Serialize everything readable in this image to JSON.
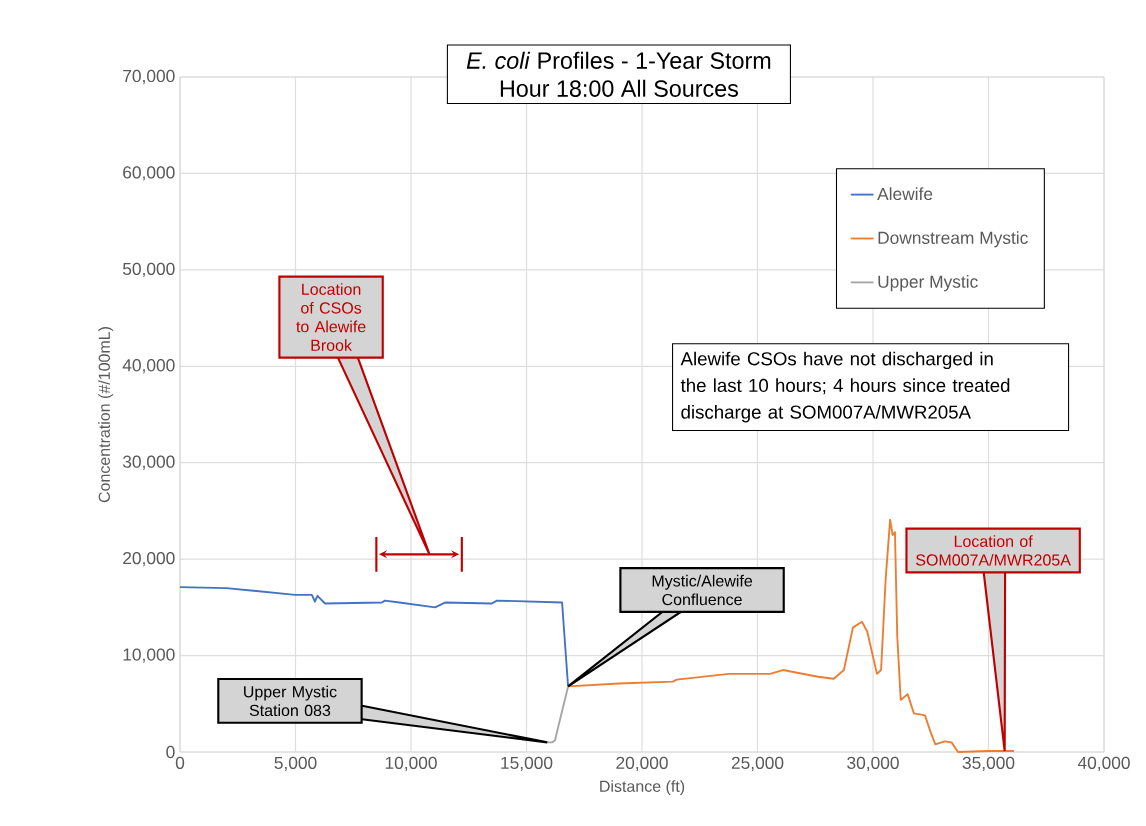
{
  "chart_data": {
    "type": "line",
    "title": "*E. coli* Profiles - 1-Year Storm",
    "subtitle": "Hour 18:00 All Sources",
    "xlabel": "Distance (ft)",
    "ylabel": "Concentration (#/100mL)",
    "xlim": [
      0,
      40000
    ],
    "ylim": [
      0,
      70000
    ],
    "xticks": [
      {
        "value": 0,
        "label": "0"
      },
      {
        "value": 5000,
        "label": "5,000"
      },
      {
        "value": 10000,
        "label": "10,000"
      },
      {
        "value": 15000,
        "label": "15,000"
      },
      {
        "value": 20000,
        "label": "20,000"
      },
      {
        "value": 25000,
        "label": "25,000"
      },
      {
        "value": 30000,
        "label": "30,000"
      },
      {
        "value": 35000,
        "label": "35,000"
      },
      {
        "value": 40000,
        "label": "40,000"
      }
    ],
    "yticks": [
      {
        "value": 0,
        "label": "0"
      },
      {
        "value": 10000,
        "label": "10,000"
      },
      {
        "value": 20000,
        "label": "20,000"
      },
      {
        "value": 30000,
        "label": "30,000"
      },
      {
        "value": 40000,
        "label": "40,000"
      },
      {
        "value": 50000,
        "label": "50,000"
      },
      {
        "value": 60000,
        "label": "60,000"
      },
      {
        "value": 70000,
        "label": "70,000"
      }
    ],
    "grid": true,
    "legend": "top right",
    "series": [
      {
        "name": "Alewife",
        "color": "#4472c4",
        "x": [
          0,
          2000,
          4980,
          5710,
          5840,
          5950,
          6280,
          8740,
          8870,
          9500,
          11040,
          11470,
          13500,
          13720,
          16540,
          16800
        ],
        "values": [
          17100,
          17000,
          16300,
          16300,
          15600,
          16200,
          15400,
          15500,
          15700,
          15500,
          15000,
          15500,
          15400,
          15700,
          15500,
          6800
        ]
      },
      {
        "name": "Downstream Mystic",
        "color": "#ed7d31",
        "x": [
          16800,
          19000,
          21340,
          21500,
          23760,
          25540,
          26100,
          27620,
          28300,
          28740,
          29130,
          29520,
          29750,
          30170,
          30350,
          30550,
          30740,
          30850,
          30950,
          31050,
          31200,
          31500,
          31770,
          32250,
          32500,
          32700,
          33100,
          33400,
          33680,
          35000,
          36100
        ],
        "values": [
          6800,
          7100,
          7300,
          7500,
          8100,
          8100,
          8500,
          7800,
          7600,
          8500,
          12900,
          13500,
          12500,
          8100,
          8500,
          18000,
          24100,
          22500,
          22800,
          12000,
          5400,
          6000,
          4000,
          3800,
          2000,
          800,
          1100,
          1000,
          0,
          100,
          100
        ]
      },
      {
        "name": "Upper Mystic",
        "color": "#a5a5a5",
        "x": [
          15900,
          16100,
          16230,
          16800
        ],
        "values": [
          1000,
          1000,
          1200,
          6800
        ]
      }
    ],
    "annotations": [
      "Location of CSOs to Alewife Brook",
      {
        "text": "Upper Mystic Station 083",
        "x": 15900,
        "y": 1000
      },
      "Mystic/Alewife Confluence",
      {
        "text": "Location of SOM007A/MWR205A",
        "x": 35700,
        "y": 100
      },
      "Alewife CSOs have not discharged in the last 10 hours; 4 hours since treated discharge at SOM007A/MWR205A"
    ]
  }
}
